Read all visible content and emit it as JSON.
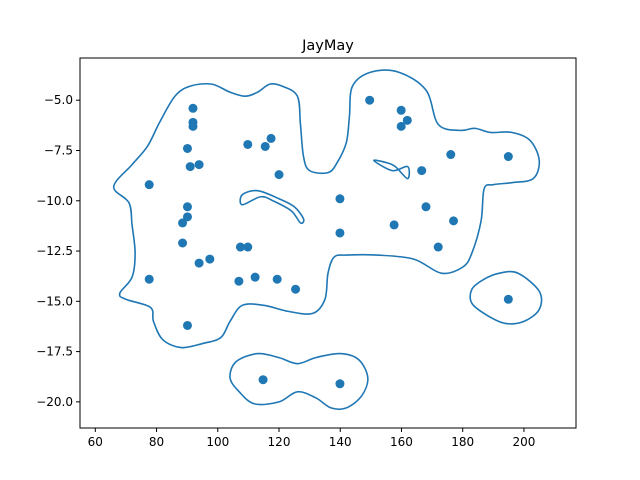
{
  "chart_data": {
    "type": "scatter",
    "title": "JayMay",
    "xlabel": "",
    "ylabel": "",
    "xlim": [
      55,
      217
    ],
    "ylim": [
      -21.3,
      -2.9
    ],
    "x_ticks": [
      60,
      80,
      100,
      120,
      140,
      160,
      180,
      200
    ],
    "x_tick_labels": [
      "60",
      "80",
      "100",
      "120",
      "140",
      "160",
      "180",
      "200"
    ],
    "y_ticks": [
      -5.0,
      -7.5,
      -10.0,
      -12.5,
      -15.0,
      -17.5,
      -20.0
    ],
    "y_tick_labels": [
      "−5.0",
      "−7.5",
      "−10.0",
      "−12.5",
      "−15.0",
      "−17.5",
      "−20.0"
    ],
    "grid": false,
    "colors": {
      "points": "#1f77b4",
      "contours": "#1f77b4"
    },
    "points": [
      {
        "x": 77.6,
        "y": -9.2
      },
      {
        "x": 77.6,
        "y": -13.9
      },
      {
        "x": 88.5,
        "y": -11.1
      },
      {
        "x": 88.5,
        "y": -12.1
      },
      {
        "x": 90.1,
        "y": -7.4
      },
      {
        "x": 90.1,
        "y": -10.3
      },
      {
        "x": 90.1,
        "y": -10.8
      },
      {
        "x": 90.1,
        "y": -16.2
      },
      {
        "x": 91.0,
        "y": -8.3
      },
      {
        "x": 91.9,
        "y": -5.4
      },
      {
        "x": 91.9,
        "y": -6.1
      },
      {
        "x": 91.9,
        "y": -6.3
      },
      {
        "x": 93.9,
        "y": -8.2
      },
      {
        "x": 93.9,
        "y": -13.1
      },
      {
        "x": 97.4,
        "y": -12.9
      },
      {
        "x": 106.9,
        "y": -14.0
      },
      {
        "x": 107.4,
        "y": -12.3
      },
      {
        "x": 109.8,
        "y": -12.3
      },
      {
        "x": 109.8,
        "y": -7.2
      },
      {
        "x": 112.2,
        "y": -13.8
      },
      {
        "x": 115.5,
        "y": -7.3
      },
      {
        "x": 117.4,
        "y": -6.9
      },
      {
        "x": 119.4,
        "y": -13.9
      },
      {
        "x": 120.0,
        "y": -8.7
      },
      {
        "x": 125.4,
        "y": -14.4
      },
      {
        "x": 139.9,
        "y": -9.9
      },
      {
        "x": 139.9,
        "y": -11.6
      },
      {
        "x": 149.6,
        "y": -5.0
      },
      {
        "x": 157.6,
        "y": -11.2
      },
      {
        "x": 159.9,
        "y": -5.5
      },
      {
        "x": 159.9,
        "y": -6.3
      },
      {
        "x": 161.9,
        "y": -6.0
      },
      {
        "x": 166.6,
        "y": -8.5
      },
      {
        "x": 168.0,
        "y": -10.3
      },
      {
        "x": 172.0,
        "y": -12.3
      },
      {
        "x": 176.1,
        "y": -7.7
      },
      {
        "x": 177.0,
        "y": -11.0
      },
      {
        "x": 194.9,
        "y": -7.8
      },
      {
        "x": 194.9,
        "y": -14.9
      },
      {
        "x": 114.8,
        "y": -18.9
      },
      {
        "x": 139.9,
        "y": -19.1
      }
    ],
    "contours": [
      [
        [
          72,
          -13.8
        ],
        [
          73,
          -12.6
        ],
        [
          72,
          -11.2
        ],
        [
          71,
          -10.1
        ],
        [
          66,
          -9.3
        ],
        [
          72,
          -8.2
        ],
        [
          77,
          -7.3
        ],
        [
          81,
          -6.1
        ],
        [
          86,
          -4.8
        ],
        [
          91,
          -4.3
        ],
        [
          98,
          -4.2
        ],
        [
          104,
          -4.6
        ],
        [
          109,
          -4.8
        ],
        [
          113,
          -4.6
        ],
        [
          117,
          -4.2
        ],
        [
          121,
          -4.3
        ],
        [
          126,
          -4.8
        ],
        [
          127,
          -6.2
        ],
        [
          128,
          -7.8
        ],
        [
          130,
          -8.5
        ],
        [
          136,
          -8.6
        ],
        [
          139,
          -8.1
        ],
        [
          142,
          -7.1
        ],
        [
          143,
          -5.8
        ],
        [
          144,
          -4.3
        ],
        [
          150,
          -3.6
        ],
        [
          159,
          -3.6
        ],
        [
          168,
          -4.5
        ],
        [
          172,
          -6.2
        ],
        [
          179,
          -6.5
        ],
        [
          184,
          -6.4
        ],
        [
          189,
          -6.6
        ],
        [
          196,
          -6.6
        ],
        [
          202,
          -7.0
        ],
        [
          205,
          -8.0
        ],
        [
          203,
          -8.9
        ],
        [
          196,
          -9.1
        ],
        [
          190,
          -9.2
        ],
        [
          187,
          -9.4
        ],
        [
          186,
          -11.0
        ],
        [
          183,
          -12.6
        ],
        [
          180,
          -13.3
        ],
        [
          173,
          -13.6
        ],
        [
          164,
          -12.9
        ],
        [
          152,
          -12.7
        ],
        [
          142,
          -12.7
        ],
        [
          138,
          -12.8
        ],
        [
          136,
          -13.6
        ],
        [
          135,
          -14.9
        ],
        [
          131,
          -15.6
        ],
        [
          123,
          -15.5
        ],
        [
          115,
          -15.2
        ],
        [
          108,
          -15.2
        ],
        [
          104,
          -16.0
        ],
        [
          101,
          -16.8
        ],
        [
          95,
          -17.1
        ],
        [
          88,
          -17.3
        ],
        [
          82,
          -16.9
        ],
        [
          79,
          -16.0
        ],
        [
          78,
          -15.3
        ],
        [
          70,
          -14.9
        ],
        [
          68,
          -14.6
        ],
        [
          72,
          -13.8
        ]
      ],
      [
        [
          151,
          -8.0
        ],
        [
          155,
          -8.1
        ],
        [
          158,
          -8.3
        ],
        [
          162,
          -8.9
        ],
        [
          162,
          -8.3
        ],
        [
          157,
          -8.5
        ],
        [
          151,
          -8.0
        ]
      ],
      [
        [
          114,
          -9.8
        ],
        [
          118,
          -10.0
        ],
        [
          124,
          -10.5
        ],
        [
          127,
          -11.1
        ],
        [
          128,
          -10.9
        ],
        [
          125,
          -10.3
        ],
        [
          120,
          -9.9
        ],
        [
          113,
          -9.5
        ],
        [
          108,
          -9.7
        ],
        [
          108,
          -10.2
        ],
        [
          114,
          -9.8
        ]
      ],
      [
        [
          192,
          -13.6
        ],
        [
          198,
          -13.6
        ],
        [
          205,
          -14.5
        ],
        [
          205,
          -15.4
        ],
        [
          200,
          -16.0
        ],
        [
          194,
          -16.1
        ],
        [
          188,
          -15.7
        ],
        [
          183,
          -15.1
        ],
        [
          183,
          -14.4
        ],
        [
          187,
          -13.9
        ],
        [
          192,
          -13.6
        ]
      ],
      [
        [
          113,
          -17.6
        ],
        [
          120,
          -17.8
        ],
        [
          126,
          -18.1
        ],
        [
          132,
          -17.8
        ],
        [
          140,
          -17.6
        ],
        [
          146,
          -17.9
        ],
        [
          149,
          -18.8
        ],
        [
          147,
          -19.7
        ],
        [
          142,
          -20.3
        ],
        [
          137,
          -20.3
        ],
        [
          132,
          -19.8
        ],
        [
          126,
          -19.5
        ],
        [
          120,
          -20.0
        ],
        [
          112,
          -20.1
        ],
        [
          107,
          -19.5
        ],
        [
          104,
          -18.8
        ],
        [
          106,
          -18.0
        ],
        [
          113,
          -17.6
        ]
      ]
    ]
  }
}
